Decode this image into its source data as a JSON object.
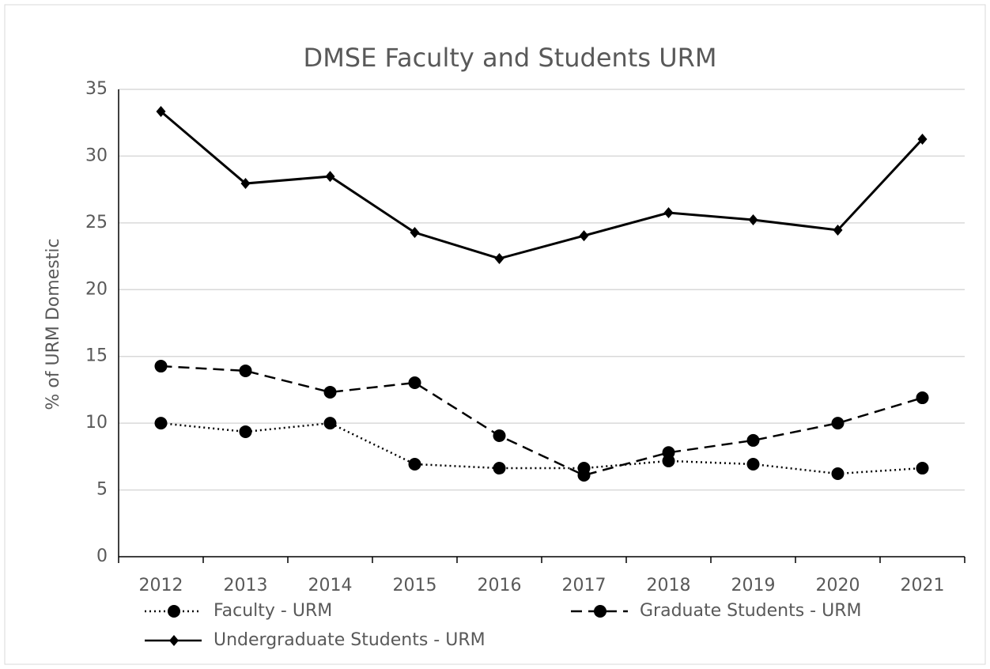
{
  "chart_data": {
    "type": "line",
    "title": "DMSE Faculty and Students URM",
    "y_label": "% of URM Domestic",
    "categories": [
      "2012",
      "2013",
      "2014",
      "2015",
      "2016",
      "2017",
      "2018",
      "2019",
      "2020",
      "2021"
    ],
    "ylim": [
      0,
      35
    ],
    "yticks": [
      0,
      5,
      10,
      15,
      20,
      25,
      30,
      35
    ],
    "grid": true,
    "series": [
      {
        "name": "Faculty - URM",
        "color": "#000000",
        "dash": "dotted",
        "marker": "circle",
        "values": [
          10.0,
          9.36,
          10.0,
          6.93,
          6.63,
          6.63,
          7.17,
          6.93,
          6.22,
          6.63
        ]
      },
      {
        "name": "Graduate Students - URM",
        "color": "#000000",
        "dash": "dashed",
        "marker": "circle",
        "values": [
          14.27,
          13.92,
          12.32,
          13.03,
          9.06,
          6.1,
          7.8,
          8.71,
          10.0,
          11.9
        ]
      },
      {
        "name": "Undergraduate Students - URM",
        "color": "#000000",
        "dash": "solid",
        "marker": "diamond",
        "values": [
          33.34,
          27.95,
          28.48,
          24.28,
          22.33,
          24.04,
          25.76,
          25.23,
          24.46,
          31.27
        ]
      }
    ]
  }
}
